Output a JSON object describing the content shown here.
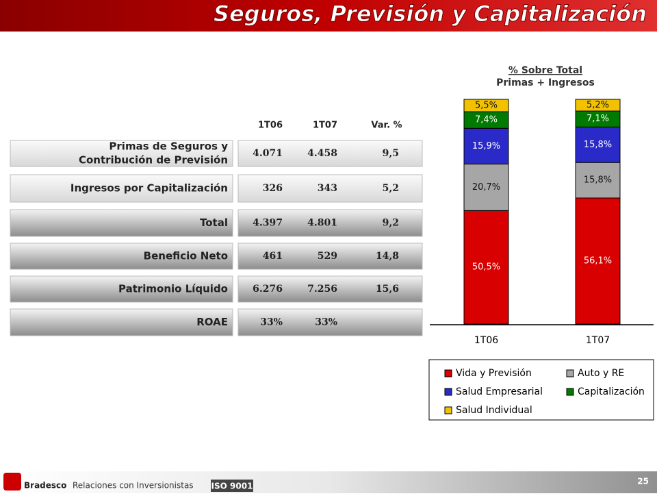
{
  "slide_title": "Seguros, Previsión y Capitalización",
  "table": {
    "header": [
      "1T06",
      "1T07",
      "Var. %"
    ],
    "rows": [
      {
        "label": [
          "Primas de Seguros y",
          "Contribución de Previsión"
        ],
        "cells": [
          "4.071",
          "4.458",
          "9,5"
        ]
      },
      {
        "label": [
          "Ingresos por Capitalización"
        ],
        "cells": [
          "326",
          "343",
          "5,2"
        ]
      },
      {
        "label": [
          "Total"
        ],
        "cells": [
          "4.397",
          "4.801",
          "9,2"
        ]
      },
      {
        "label": [
          "Beneficio Neto"
        ],
        "cells": [
          "461",
          "529",
          "14,8"
        ]
      },
      {
        "label": [
          "Patrimonio Líquido"
        ],
        "cells": [
          "6.276",
          "7.256",
          "15,6"
        ]
      },
      {
        "label": [
          "ROAE"
        ],
        "cells": [
          "33%",
          "33%"
        ]
      }
    ]
  },
  "chart_data": {
    "type": "stacked_bar",
    "title_lines": [
      "% Sobre Total",
      "Primas + Ingresos"
    ],
    "categories": [
      "1T06",
      "1T07"
    ],
    "ylim": [
      0,
      100
    ],
    "series": [
      {
        "name": "Vida y Previsión",
        "color": "#d80000",
        "values": [
          50.5,
          56.1
        ],
        "value_labels": [
          "50,5%",
          "56,1%"
        ]
      },
      {
        "name": "Auto y RE",
        "color": "#a6a6a6",
        "values": [
          20.7,
          15.8
        ],
        "value_labels": [
          "20,7%",
          "15,8%"
        ]
      },
      {
        "name": "Salud Empresarial",
        "color": "#2a2ac8",
        "values": [
          15.9,
          15.8
        ],
        "value_labels": [
          "15,9%",
          "15,8%"
        ]
      },
      {
        "name": "Capitalización",
        "color": "#007a00",
        "values": [
          7.4,
          7.1
        ],
        "value_labels": [
          "7,4%",
          "7,1%"
        ]
      },
      {
        "name": "Salud Individual",
        "color": "#f2c200",
        "values": [
          5.5,
          5.2
        ],
        "value_labels": [
          "5,5%",
          "5,2%"
        ]
      }
    ]
  },
  "footer": {
    "brand": "Bradesco",
    "text": "Relaciones con Inversionistas",
    "badge": "ISO 9001",
    "page": "25"
  }
}
